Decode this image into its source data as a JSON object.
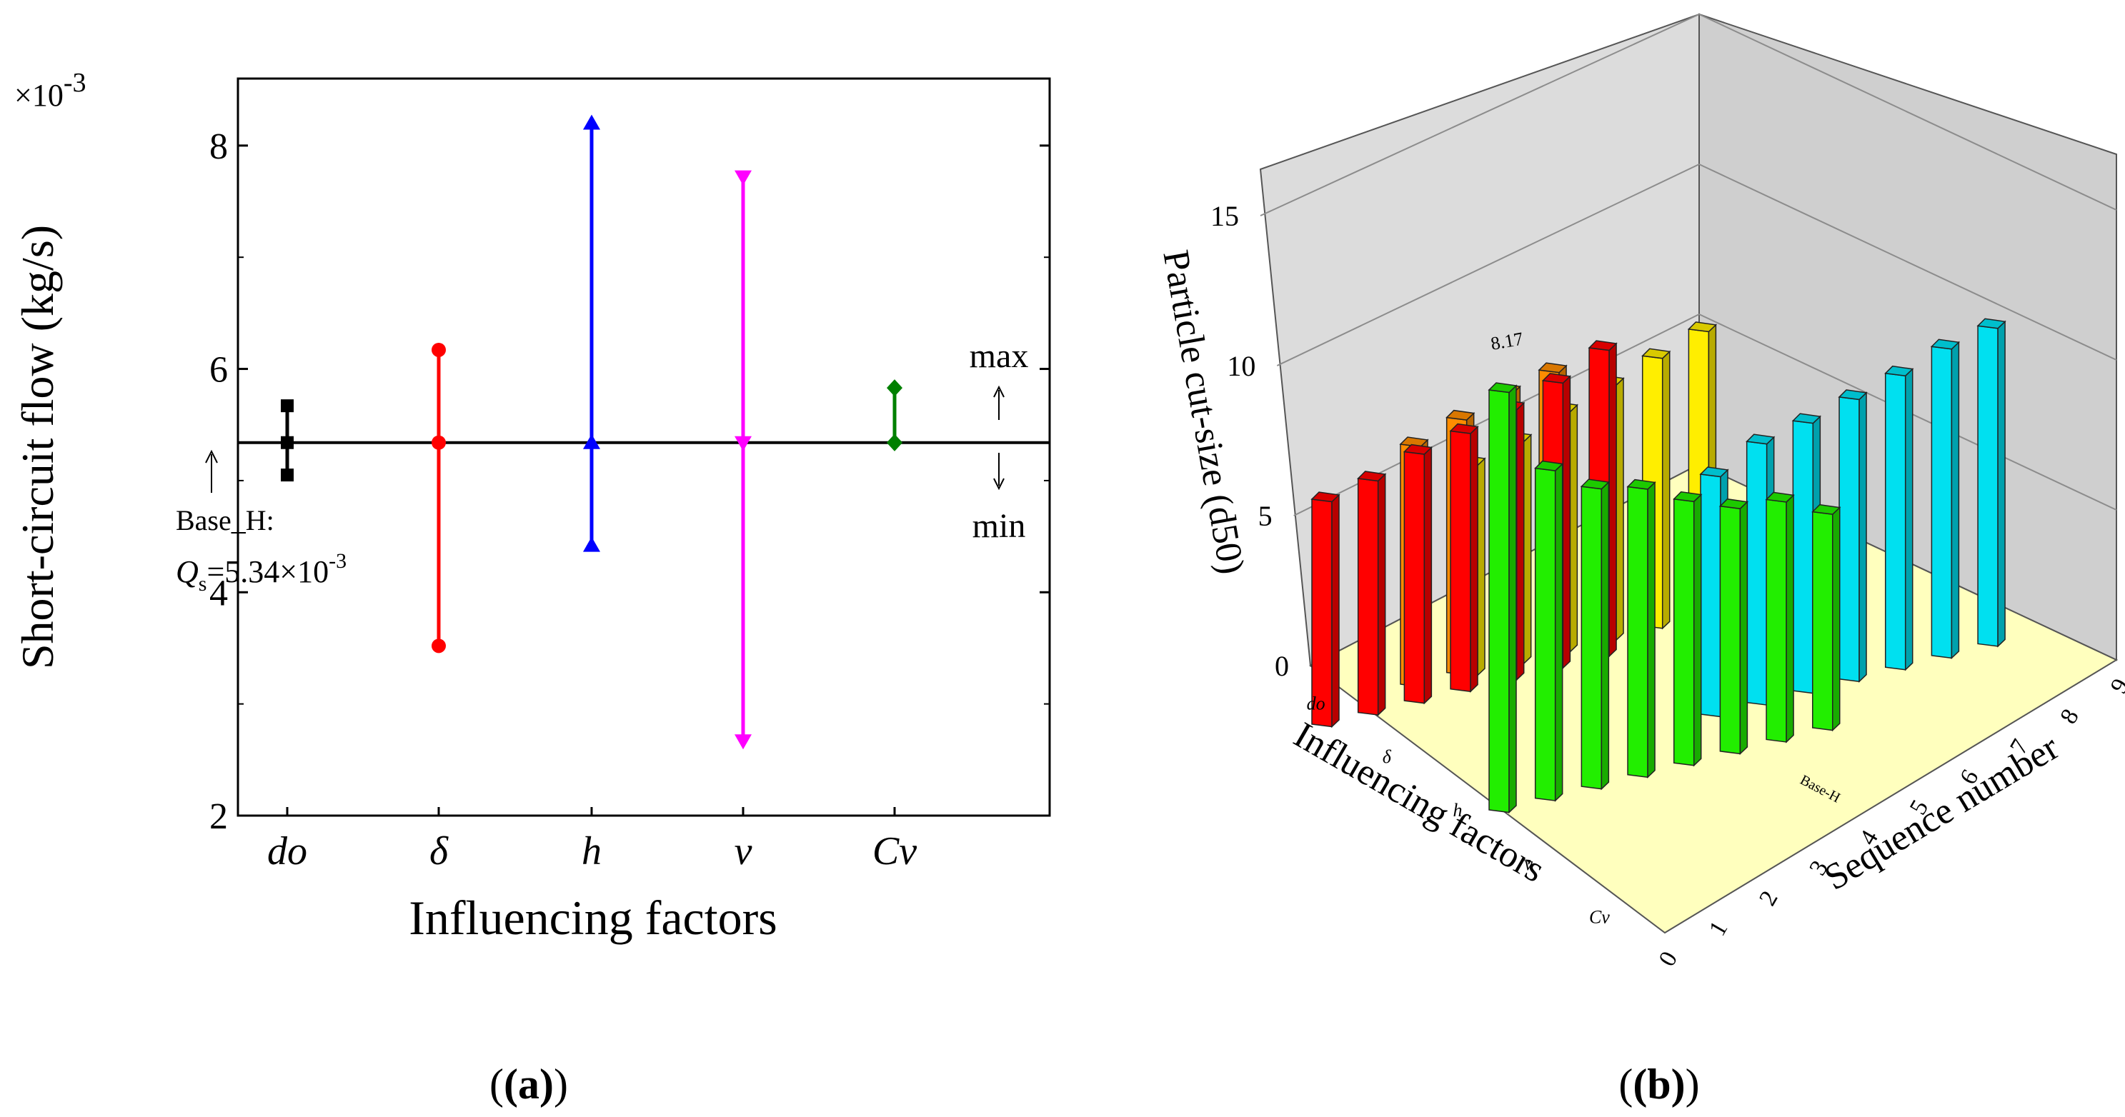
{
  "chart_data": [
    {
      "type": "range",
      "panel_label": "(a)",
      "title": "",
      "xlabel": "Influencing factors",
      "ylabel": "Short-circuit flow (kg/s)",
      "y_multiplier": "×10",
      "y_multiplier_exp": "-3",
      "ylim": [
        2,
        8.6
      ],
      "yticks": [
        "2",
        "4",
        "6",
        "8"
      ],
      "baseline": 5.34,
      "annotations": {
        "base_label": "Base_H:",
        "base_q_symbol": "Q",
        "base_q_sub": "s",
        "base_q_value": "=5.34×10",
        "base_q_exp": "-3",
        "max_label": "max",
        "min_label": "min"
      },
      "factors": [
        {
          "name": "do",
          "min": 5.05,
          "max": 5.67,
          "color": "#000000",
          "marker": "square"
        },
        {
          "name": "δ",
          "min": 3.52,
          "max": 6.17,
          "color": "#ff0000",
          "marker": "circle"
        },
        {
          "name": "h",
          "min": 4.42,
          "max": 8.2,
          "color": "#0000ff",
          "marker": "triangle-up"
        },
        {
          "name": "v",
          "min": 2.67,
          "max": 7.72,
          "color": "#ff00ff",
          "marker": "triangle-down"
        },
        {
          "name": "Cv",
          "min": 5.34,
          "max": 5.83,
          "color": "#008000",
          "marker": "diamond"
        }
      ]
    },
    {
      "type": "bar3d",
      "panel_label": "(b)",
      "title": "",
      "zlabel": "Particle cut-size (d50)",
      "xlabel": "Influencing factors",
      "ylabel": "Sequence number",
      "zlim": [
        0,
        15
      ],
      "zticks": [
        "0",
        "5",
        "10",
        "15"
      ],
      "factor_labels": [
        "do",
        "δ",
        "h",
        "v",
        "Cv"
      ],
      "sequence_labels": [
        "0",
        "1",
        "2",
        "3",
        "4",
        "5",
        "6",
        "7",
        "8",
        "9"
      ],
      "annotations": {
        "value_label": "8.17",
        "base_label": "Base-H"
      },
      "series": [
        {
          "factor": "do",
          "color": "#ff0000",
          "values": [
            7.5,
            7.8,
            8.3,
            8.6,
            9.0,
            9.5,
            10.2
          ]
        },
        {
          "factor": "δ",
          "color": "#ff8c00",
          "values": [
            8.0,
            8.5,
            9.0,
            9.3
          ]
        },
        {
          "factor": "h",
          "color": "#ffee00",
          "values": [
            7.0,
            7.4,
            8.0,
            8.5,
            9.0,
            9.5
          ]
        },
        {
          "factor": "v",
          "color": "#22ee00",
          "values": [
            14.0,
            11.0,
            10.0,
            9.6,
            8.8,
            8.17,
            8.0,
            7.2
          ]
        },
        {
          "factor": "Cv",
          "color": "#00e0f0",
          "values": [
            8.0,
            8.7,
            9.0,
            9.4,
            9.8,
            10.3,
            10.6
          ]
        }
      ]
    }
  ],
  "panel_labels": {
    "a": "(a)",
    "b": "(b)"
  }
}
